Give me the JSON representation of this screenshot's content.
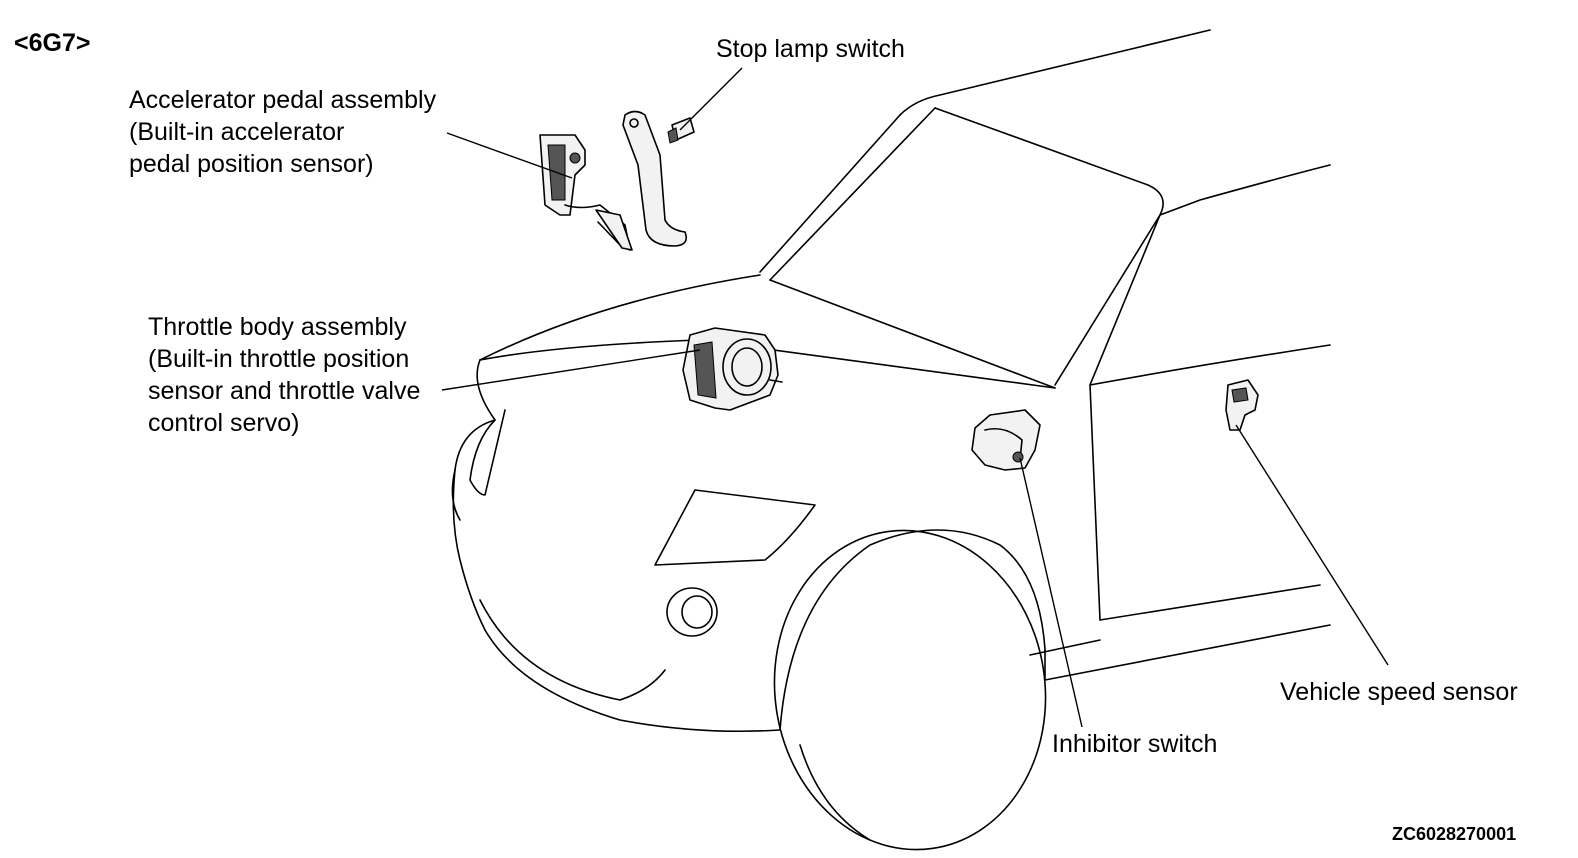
{
  "diagram_code": "<6G7>",
  "figure_id": "ZC6028270001",
  "labels": {
    "stop_lamp_switch": [
      "Stop lamp switch"
    ],
    "accelerator_pedal": [
      "Accelerator pedal assembly",
      "(Built-in accelerator",
      "pedal position sensor)"
    ],
    "throttle_body": [
      "Throttle body assembly",
      "(Built-in throttle position",
      "sensor and throttle valve",
      "control servo)"
    ],
    "inhibitor_switch": [
      "Inhibitor switch"
    ],
    "vehicle_speed_sensor": [
      "Vehicle speed sensor"
    ]
  }
}
